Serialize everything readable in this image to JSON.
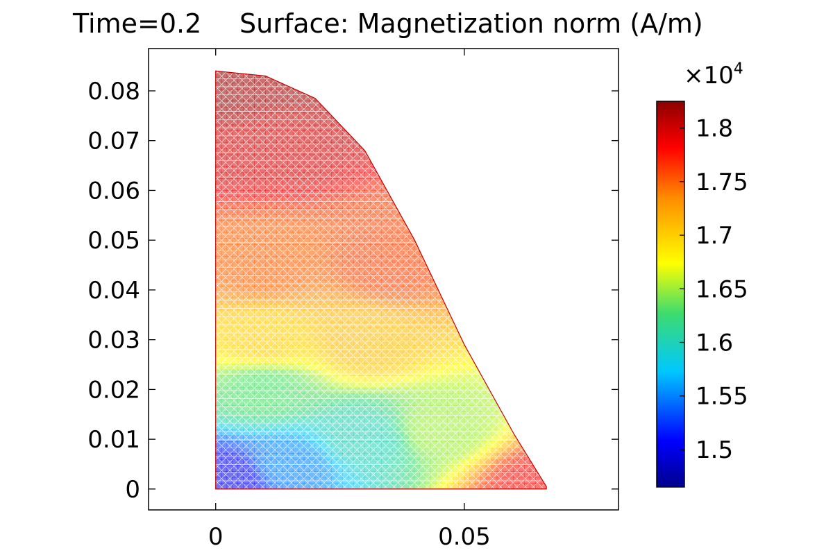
{
  "title": {
    "time": "Time=0.2",
    "surface": "Surface: Magnetization norm (A/m)"
  },
  "colorbar": {
    "multiplier": "×10",
    "exponent": "4",
    "ticks": [
      "1.8",
      "1.75",
      "1.7",
      "1.65",
      "1.6",
      "1.55",
      "1.5"
    ],
    "colormap": "rainbow",
    "range": [
      1.465,
      1.825
    ]
  },
  "chart_data": {
    "type": "heatmap",
    "title": "Time=0.2   Surface: Magnetization norm (A/m)",
    "xlim": [
      -0.0135,
      0.081
    ],
    "ylim": [
      -0.0042,
      0.0885
    ],
    "x_ticks": [
      0,
      0.05
    ],
    "x_tick_labels": [
      "0",
      "0.05"
    ],
    "y_ticks": [
      0,
      0.01,
      0.02,
      0.03,
      0.04,
      0.05,
      0.06,
      0.07,
      0.08
    ],
    "y_tick_labels": [
      "0",
      "0.01",
      "0.02",
      "0.03",
      "0.04",
      "0.05",
      "0.06",
      "0.07",
      "0.08"
    ],
    "grid": false,
    "domain_outline": [
      [
        0,
        0
      ],
      [
        0,
        0.084
      ],
      [
        0.01,
        0.083
      ],
      [
        0.02,
        0.0785
      ],
      [
        0.03,
        0.068
      ],
      [
        0.04,
        0.05
      ],
      [
        0.05,
        0.029
      ],
      [
        0.06,
        0.011
      ],
      [
        0.0665,
        0.0005
      ],
      [
        0.0665,
        0
      ],
      [
        0,
        0
      ]
    ],
    "field": {
      "quantity": "Magnetization norm",
      "unit": "A/m",
      "scale": 10000,
      "min": 1.465,
      "max": 1.825,
      "description_points": [
        {
          "x": 0.002,
          "y": 0.002,
          "value": 1.5
        },
        {
          "x": 0.015,
          "y": 0.005,
          "value": 1.55
        },
        {
          "x": 0.03,
          "y": 0.01,
          "value": 1.6
        },
        {
          "x": 0.045,
          "y": 0.012,
          "value": 1.65
        },
        {
          "x": 0.01,
          "y": 0.02,
          "value": 1.63
        },
        {
          "x": 0.01,
          "y": 0.03,
          "value": 1.7
        },
        {
          "x": 0.03,
          "y": 0.03,
          "value": 1.71
        },
        {
          "x": 0.01,
          "y": 0.045,
          "value": 1.75
        },
        {
          "x": 0.035,
          "y": 0.045,
          "value": 1.76
        },
        {
          "x": 0.01,
          "y": 0.07,
          "value": 1.8
        },
        {
          "x": 0.005,
          "y": 0.08,
          "value": 1.82
        },
        {
          "x": 0.065,
          "y": 0.001,
          "value": 1.78
        }
      ]
    }
  }
}
